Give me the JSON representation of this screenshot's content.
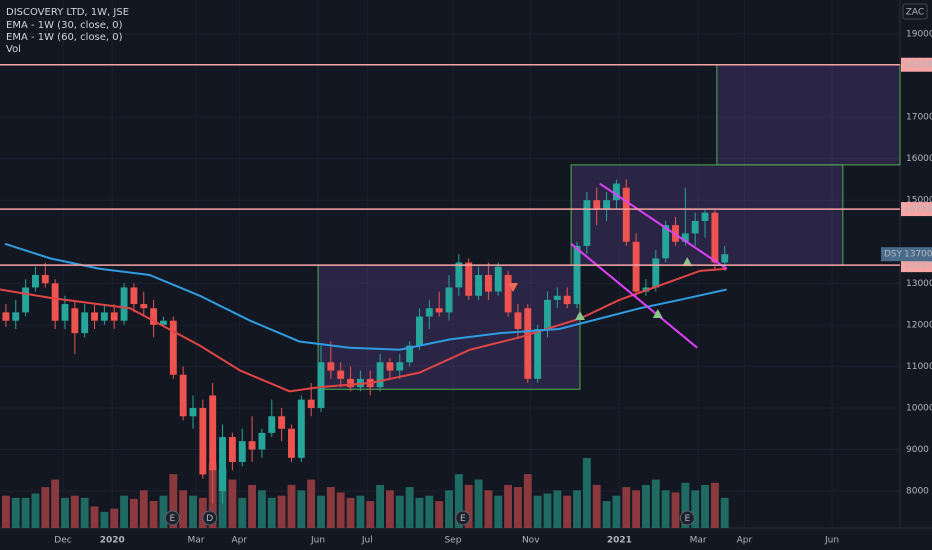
{
  "chart_data": {
    "type": "candlestick",
    "title": "DISCOVERY LTD, 1W, JSE",
    "currency": "ZAC",
    "xlim": [
      -0.6,
      90.8
    ],
    "ylim": [
      7111,
      19818
    ],
    "xticks": [
      {
        "value": 5.8,
        "label": "Dec"
      },
      {
        "value": 10.8,
        "label": "2020"
      },
      {
        "value": 19.3,
        "label": "Mar"
      },
      {
        "value": 23.7,
        "label": "Apr"
      },
      {
        "value": 31.7,
        "label": "Jun"
      },
      {
        "value": 36.7,
        "label": "Jul"
      },
      {
        "value": 45.4,
        "label": "Sep"
      },
      {
        "value": 53.3,
        "label": "Nov"
      },
      {
        "value": 62.3,
        "label": "2021"
      },
      {
        "value": 70.3,
        "label": "Mar"
      },
      {
        "value": 75.0,
        "label": "Apr"
      },
      {
        "value": 83.9,
        "label": "Jun"
      }
    ],
    "yticks": [
      19000,
      17000,
      16000,
      15000,
      13000,
      12000,
      11000,
      10000,
      9000,
      8000
    ],
    "colors": {
      "up": "#26a69a",
      "down": "#ef5350",
      "vol_up": "#1f6b63",
      "vol_down": "#8a3a3e"
    },
    "open": [
      12300,
      12100,
      12300,
      12900,
      13200,
      13000,
      12100,
      12400,
      11800,
      12300,
      12100,
      12300,
      12100,
      12900,
      12500,
      12400,
      12000,
      12100,
      10800,
      9800,
      10000,
      10300,
      8000,
      9300,
      8700,
      9200,
      9000,
      9400,
      9800,
      9500,
      8800,
      10200,
      10000,
      11100,
      10900,
      10700,
      10500,
      10700,
      10500,
      11100,
      10900,
      11100,
      11500,
      12200,
      12400,
      12300,
      12900,
      13500,
      12700,
      13200,
      12800,
      13200,
      12300,
      12400,
      10700,
      11900,
      12600,
      12700,
      12500,
      13900,
      15000,
      14800,
      15000,
      15300,
      14000,
      12800,
      12900,
      13600,
      14400,
      14000,
      14200,
      14500,
      14700,
      13500
    ],
    "high": [
      12500,
      12600,
      13100,
      13400,
      13500,
      13100,
      12700,
      12600,
      12500,
      12500,
      12500,
      12500,
      13000,
      13000,
      12800,
      12600,
      12200,
      12200,
      11000,
      10300,
      10200,
      10600,
      9600,
      9400,
      9500,
      9800,
      9500,
      10200,
      10000,
      9600,
      10300,
      10600,
      11500,
      11600,
      11100,
      11000,
      10900,
      10900,
      11300,
      11200,
      11300,
      11600,
      12400,
      12600,
      12800,
      13200,
      13700,
      13600,
      13400,
      13500,
      13500,
      13300,
      12500,
      12500,
      12000,
      12800,
      12900,
      12900,
      14000,
      15200,
      15300,
      15200,
      15500,
      15500,
      14200,
      13100,
      13800,
      14500,
      14600,
      15300,
      14700,
      14800,
      14800,
      13900
    ],
    "low": [
      11950,
      11900,
      12200,
      12800,
      12900,
      11900,
      11900,
      11300,
      11700,
      11900,
      12000,
      11900,
      12000,
      12300,
      12200,
      11700,
      12000,
      10700,
      9700,
      9500,
      8300,
      7700,
      7700,
      8500,
      8600,
      8700,
      8800,
      9300,
      9200,
      8700,
      8700,
      9800,
      9900,
      10700,
      10500,
      10400,
      10400,
      10300,
      10400,
      10700,
      10700,
      11000,
      11400,
      11900,
      12200,
      12100,
      12700,
      12600,
      12600,
      12600,
      12700,
      12200,
      11700,
      10600,
      10600,
      11700,
      12400,
      12400,
      12400,
      13700,
      14400,
      14500,
      14800,
      13900,
      12700,
      12700,
      12800,
      13500,
      13900,
      13900,
      13900,
      14100,
      13300,
      13300
    ],
    "close": [
      12100,
      12300,
      12900,
      13200,
      13000,
      12100,
      12500,
      11800,
      12300,
      12100,
      12300,
      12100,
      12900,
      12500,
      12400,
      12000,
      12100,
      10800,
      9800,
      10000,
      8400,
      8500,
      9300,
      8700,
      9200,
      9000,
      9400,
      9800,
      9500,
      8800,
      10200,
      10000,
      11100,
      10900,
      10700,
      10500,
      10700,
      10500,
      11100,
      10900,
      11100,
      11500,
      12200,
      12400,
      12300,
      12900,
      13500,
      12700,
      13200,
      12800,
      13400,
      12300,
      11900,
      10700,
      11900,
      12600,
      12700,
      12500,
      13900,
      15000,
      14800,
      15000,
      15400,
      14000,
      12800,
      12900,
      13600,
      14400,
      14000,
      14200,
      14500,
      14700,
      13500,
      13700
    ],
    "volume_name": "Vol",
    "volume": [
      300000,
      280000,
      280000,
      320000,
      380000,
      450000,
      280000,
      300000,
      280000,
      200000,
      150000,
      180000,
      300000,
      270000,
      350000,
      250000,
      300000,
      500000,
      350000,
      300000,
      280000,
      600000,
      550000,
      450000,
      280000,
      400000,
      350000,
      280000,
      300000,
      400000,
      350000,
      450000,
      300000,
      380000,
      330000,
      280000,
      300000,
      250000,
      400000,
      350000,
      300000,
      380000,
      280000,
      300000,
      250000,
      350000,
      500000,
      400000,
      450000,
      350000,
      300000,
      400000,
      380000,
      500000,
      300000,
      320000,
      350000,
      300000,
      350000,
      650000,
      400000,
      250000,
      300000,
      380000,
      350000,
      400000,
      450000,
      350000,
      330000,
      420000,
      350000,
      400000,
      420000,
      280000
    ],
    "series": [
      {
        "name": "EMA - 1W (30, close, 0)",
        "color": "#e04545",
        "x": [
          -0.6,
          4.5,
          12.6,
          19.7,
          23.8,
          28.8,
          31.9,
          37,
          42,
          47.1,
          52.2,
          58.3,
          62.3,
          66.4,
          70.5,
          73.2
        ],
        "values": [
          12850,
          12650,
          12400,
          11500,
          10900,
          10400,
          10500,
          10600,
          10850,
          11400,
          11700,
          12150,
          12600,
          12950,
          13300,
          13350
        ]
      },
      {
        "name": "EMA - 1W (60, close, 0)",
        "color": "#2f9ce0",
        "x": [
          -0.1,
          4.5,
          9.5,
          14.6,
          19.7,
          24.8,
          29.8,
          34.9,
          40,
          45.1,
          50.2,
          56.2,
          60.3,
          64.4,
          68.4,
          73.2
        ],
        "values": [
          13950,
          13600,
          13350,
          13200,
          12700,
          12100,
          11600,
          11450,
          11400,
          11650,
          11800,
          11900,
          12150,
          12400,
          12600,
          12850
        ]
      }
    ],
    "levels": [
      18260,
      14786,
      13437
    ],
    "last_price": {
      "symbol": "DSY",
      "value": 13700
    },
    "zones": [
      {
        "x": [
          31.7,
          58.3
        ],
        "y": [
          10450,
          13437
        ]
      },
      {
        "x": [
          57.4,
          85.0
        ],
        "y": [
          13437,
          15850
        ]
      },
      {
        "x": [
          72.2,
          90.8
        ],
        "y": [
          15850,
          18260
        ]
      }
    ],
    "trend_lines": [
      {
        "x": [
          60.3,
          73.2
        ],
        "y": [
          15400,
          13350
        ]
      },
      {
        "x": [
          57.4,
          70.2
        ],
        "y": [
          13950,
          11450
        ]
      }
    ],
    "markers_up": {
      "x": [
        58.3,
        66.2,
        69.2
      ],
      "y": [
        12213,
        12260,
        13510
      ]
    },
    "markers_down": {
      "x": [
        51.5
      ],
      "y": [
        12910
      ]
    },
    "events": {
      "x": [
        16.9,
        20.7,
        46.4,
        69.2
      ],
      "labels": [
        "E",
        "D",
        "E",
        "E"
      ]
    }
  }
}
